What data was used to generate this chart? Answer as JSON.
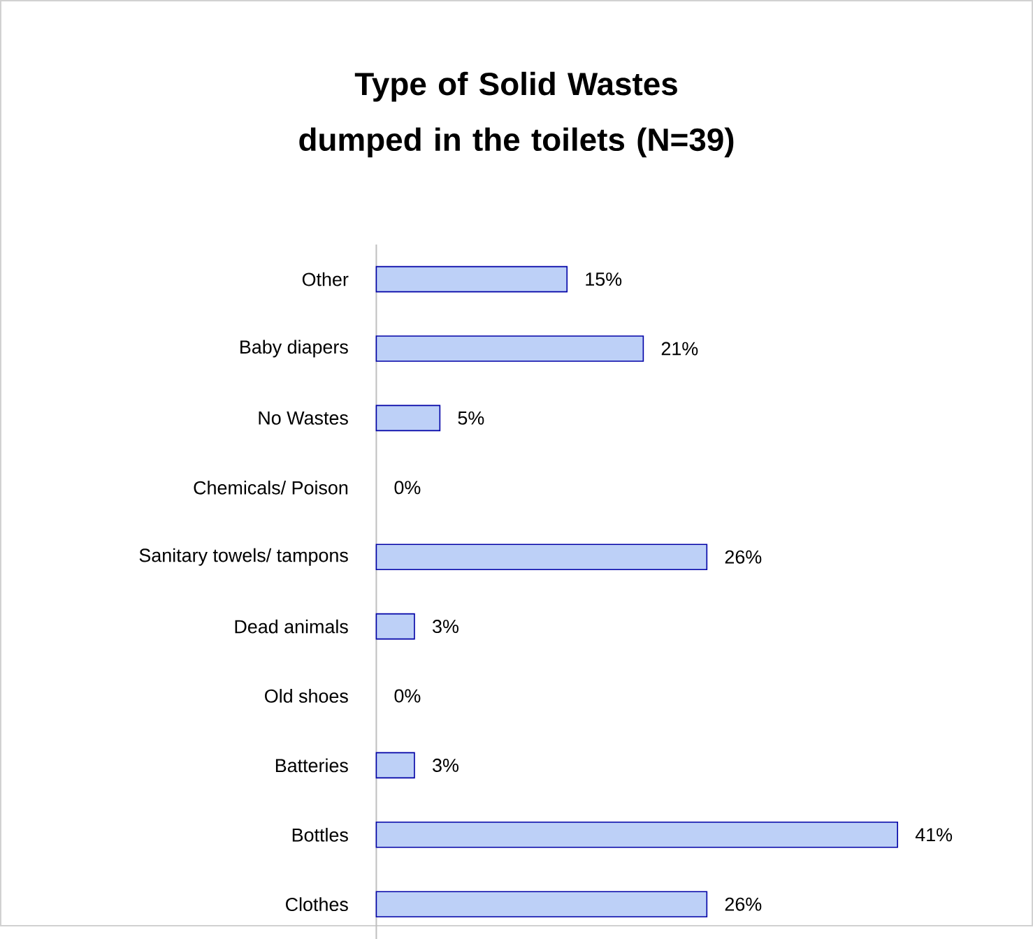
{
  "chart_data": {
    "type": "bar",
    "orientation": "horizontal",
    "title": "Type of Solid Wastes dumped in the toilets (N=39)",
    "categories": [
      "Other",
      "Baby diapers",
      "No Wastes",
      "Chemicals/ Poison",
      "Sanitary towels/ tampons",
      "Dead animals",
      "Old shoes",
      "Batteries",
      "Bottles",
      "Clothes"
    ],
    "values": [
      15,
      21,
      5,
      0,
      26,
      3,
      0,
      3,
      41,
      26
    ],
    "value_labels": [
      "15%",
      "21%",
      "5%",
      "0%",
      "26%",
      "3%",
      "0%",
      "3%",
      "41%",
      "26%"
    ],
    "color": "#bdd0f7"
  }
}
